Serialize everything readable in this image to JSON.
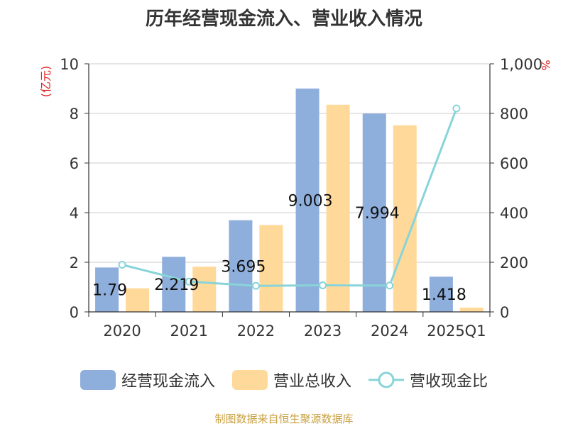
{
  "chart_data": {
    "type": "bar",
    "title": "历年经营现金流入、营业收入情况",
    "categories": [
      "2020",
      "2021",
      "2022",
      "2023",
      "2024",
      "2025Q1"
    ],
    "y_left": {
      "label": "(亿元)",
      "ylim": [
        0,
        10
      ],
      "ticks": [
        "0",
        "2",
        "4",
        "6",
        "8",
        "10"
      ]
    },
    "y_right": {
      "label": "%",
      "ylim": [
        0,
        1000
      ],
      "ticks": [
        "0",
        "200",
        "400",
        "600",
        "800",
        "1,000"
      ]
    },
    "series": [
      {
        "name": "经营现金流入",
        "type": "bar",
        "axis": "left",
        "color": "#8eaedc",
        "values": [
          1.79,
          2.219,
          3.695,
          9.003,
          7.994,
          1.418
        ],
        "labels": [
          "1.79",
          "2.219",
          "3.695",
          "9.003",
          "7.994",
          "1.418"
        ]
      },
      {
        "name": "营业总收入",
        "type": "bar",
        "axis": "left",
        "color": "#ffd999",
        "values": [
          0.95,
          1.82,
          3.5,
          8.35,
          7.52,
          0.17
        ]
      },
      {
        "name": "营收现金比",
        "type": "line",
        "axis": "right",
        "color": "#88d4d8",
        "values": [
          190,
          122,
          105,
          107,
          106,
          820
        ]
      }
    ],
    "grid": true,
    "legend": "bottom"
  },
  "source": "制图数据来自恒生聚源数据库"
}
